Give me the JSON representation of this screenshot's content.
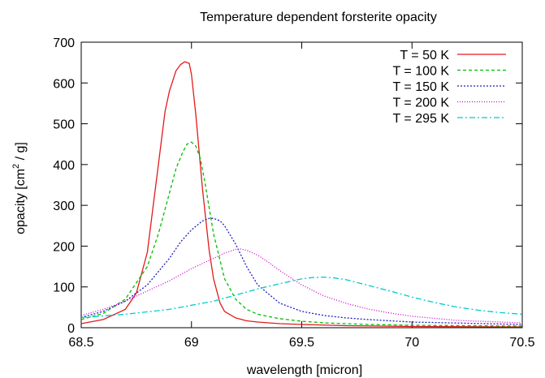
{
  "chart_data": {
    "type": "line",
    "title": "Temperature dependent forsterite opacity",
    "xlabel": "wavelength [micron]",
    "ylabel_main": "opacity [cm",
    "ylabel_sup": "2",
    "ylabel_tail": " / g]",
    "xlim": [
      68.5,
      70.5
    ],
    "ylim": [
      0,
      700
    ],
    "x_ticks": [
      68.5,
      69,
      69.5,
      70,
      70.5
    ],
    "x_tick_labels": [
      "68.5",
      "69",
      "69.5",
      "70",
      "70.5"
    ],
    "y_ticks": [
      0,
      100,
      200,
      300,
      400,
      500,
      600,
      700
    ],
    "y_tick_labels": [
      "0",
      "100",
      "200",
      "300",
      "400",
      "500",
      "600",
      "700"
    ],
    "grid": false,
    "legend_position": "top-right",
    "series": [
      {
        "name": "T = 50 K",
        "color": "#e41a1c",
        "dash": "",
        "x": [
          68.5,
          68.6,
          68.7,
          68.75,
          68.8,
          68.85,
          68.88,
          68.9,
          68.93,
          68.95,
          68.97,
          68.99,
          69.0,
          69.02,
          69.05,
          69.08,
          69.1,
          69.13,
          69.15,
          69.2,
          69.25,
          69.3,
          69.4,
          69.5,
          69.7,
          70.0,
          70.5
        ],
        "y": [
          10,
          20,
          45,
          85,
          185,
          400,
          530,
          580,
          630,
          645,
          652,
          648,
          620,
          520,
          340,
          190,
          120,
          60,
          40,
          24,
          17,
          14,
          10,
          8,
          5,
          3,
          2
        ]
      },
      {
        "name": "T = 100 K",
        "color": "#00c000",
        "dash": "4,3",
        "x": [
          68.5,
          68.6,
          68.7,
          68.8,
          68.85,
          68.9,
          68.93,
          68.96,
          68.98,
          69.0,
          69.02,
          69.04,
          69.06,
          69.1,
          69.15,
          69.2,
          69.25,
          69.3,
          69.4,
          69.5,
          69.6,
          69.8,
          70.0,
          70.5
        ],
        "y": [
          20,
          35,
          70,
          150,
          230,
          330,
          390,
          430,
          450,
          455,
          445,
          415,
          360,
          230,
          120,
          70,
          45,
          33,
          22,
          16,
          12,
          8,
          6,
          4
        ]
      },
      {
        "name": "T = 150 K",
        "color": "#1f1fbf",
        "dash": "2,2",
        "x": [
          68.5,
          68.6,
          68.7,
          68.8,
          68.9,
          68.95,
          69.0,
          69.05,
          69.08,
          69.1,
          69.13,
          69.15,
          69.2,
          69.25,
          69.3,
          69.4,
          69.5,
          69.6,
          69.7,
          69.8,
          70.0,
          70.5
        ],
        "y": [
          25,
          40,
          65,
          105,
          170,
          210,
          240,
          262,
          268,
          268,
          262,
          250,
          205,
          150,
          105,
          60,
          40,
          30,
          24,
          20,
          14,
          8
        ]
      },
      {
        "name": "T = 200 K",
        "color": "#cc00cc",
        "dash": "1,2",
        "x": [
          68.5,
          68.6,
          68.7,
          68.8,
          68.9,
          69.0,
          69.1,
          69.15,
          69.2,
          69.22,
          69.25,
          69.3,
          69.35,
          69.4,
          69.5,
          69.6,
          69.7,
          69.8,
          69.9,
          70.0,
          70.2,
          70.5
        ],
        "y": [
          30,
          45,
          65,
          90,
          115,
          145,
          170,
          183,
          192,
          193,
          190,
          178,
          160,
          140,
          105,
          78,
          60,
          46,
          36,
          28,
          18,
          12
        ]
      },
      {
        "name": "T = 295 K",
        "color": "#00cccc",
        "dash": "7,3,2,3",
        "x": [
          68.5,
          68.7,
          68.9,
          69.0,
          69.1,
          69.2,
          69.3,
          69.4,
          69.5,
          69.55,
          69.6,
          69.65,
          69.7,
          69.8,
          69.9,
          70.0,
          70.1,
          70.2,
          70.3,
          70.4,
          70.5
        ],
        "y": [
          25,
          33,
          45,
          55,
          65,
          80,
          95,
          108,
          120,
          123,
          124,
          122,
          118,
          104,
          90,
          75,
          62,
          51,
          43,
          37,
          33
        ]
      }
    ]
  }
}
